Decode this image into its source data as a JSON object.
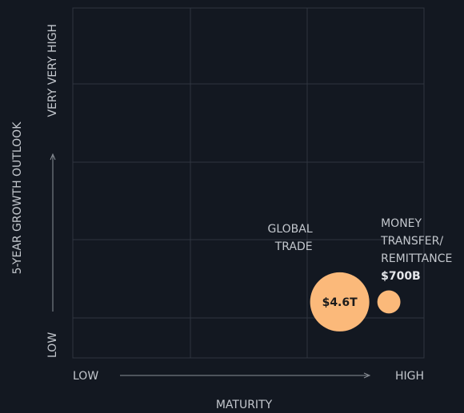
{
  "chart_data": {
    "type": "bubble",
    "x_label": "MATURITY",
    "y_label": "5-YEAR GROWTH OUTLOOK",
    "xlim": [
      0,
      1
    ],
    "ylim": [
      0,
      1
    ],
    "xticks": [
      {
        "value": 0,
        "label": "LOW"
      },
      {
        "value": 1,
        "label": "HIGH"
      }
    ],
    "yticks": [
      {
        "value": 0,
        "label": "LOW"
      },
      {
        "value": 1,
        "label": "VERY VERY HIGH"
      }
    ],
    "color": "#fbb97a",
    "points": [
      {
        "label": [
          "GLOBAL",
          "TRADE"
        ],
        "x": 0.76,
        "y": 0.16,
        "size": 4600000000000,
        "value_label": "$4.6T"
      },
      {
        "label": [
          "MONEY",
          "TRANSFER/",
          "REMITTANCE"
        ],
        "x": 0.9,
        "y": 0.16,
        "size": 700000000000,
        "value_label": "$700B"
      }
    ]
  }
}
